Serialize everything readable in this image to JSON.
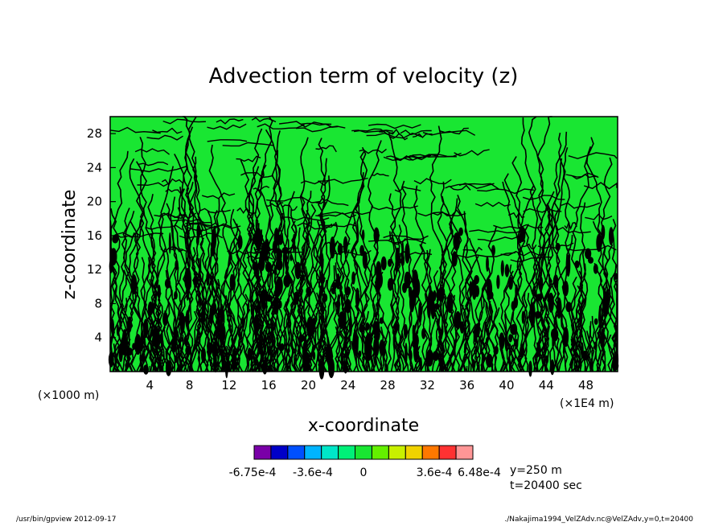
{
  "chart_data": {
    "type": "heatmap",
    "title": "Advection term of velocity (z)",
    "xlabel": "x-coordinate",
    "ylabel": "z-coordinate",
    "x_unit_left": "(×1000 m)",
    "x_unit_right": "(×1E4 m)",
    "xlim": [
      0,
      51.2
    ],
    "ylim": [
      0,
      30
    ],
    "x_ticks": [
      4,
      8,
      12,
      16,
      20,
      24,
      28,
      32,
      36,
      40,
      44,
      48
    ],
    "y_ticks": [
      4,
      8,
      12,
      16,
      20,
      24,
      28
    ],
    "colorbar": {
      "colors": [
        "#7a00a8",
        "#0000c8",
        "#0050ff",
        "#00b4ff",
        "#00e6c8",
        "#00f078",
        "#19e632",
        "#64f000",
        "#c8f000",
        "#f0d200",
        "#ff7800",
        "#ff3232",
        "#ff9696"
      ],
      "labels": [
        "-6.75e-4",
        "-3.6e-4",
        "0",
        "3.6e-4",
        "6.48e-4"
      ]
    },
    "annotations": [
      "y=250 m",
      "t=20400 sec"
    ]
  },
  "footer": {
    "left": "/usr/bin/gpview   2012-09-17",
    "right": "./Nakajima1994_VelZAdv.nc@VelZAdv,y=0,t=20400"
  }
}
